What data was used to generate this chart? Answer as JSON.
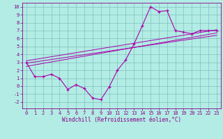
{
  "title": "",
  "xlabel": "Windchill (Refroidissement éolien,°C)",
  "bg_color": "#b2ece4",
  "line_color": "#aa00aa",
  "grid_color": "#80c0c0",
  "xlim": [
    -0.5,
    23.5
  ],
  "ylim": [
    -2.8,
    10.5
  ],
  "xticks": [
    0,
    1,
    2,
    3,
    4,
    5,
    6,
    7,
    8,
    9,
    10,
    11,
    12,
    13,
    14,
    15,
    16,
    17,
    18,
    19,
    20,
    21,
    22,
    23
  ],
  "yticks": [
    -2,
    -1,
    0,
    1,
    2,
    3,
    4,
    5,
    6,
    7,
    8,
    9,
    10
  ],
  "curve1_x": [
    0,
    1,
    2,
    3,
    4,
    5,
    6,
    7,
    8,
    9,
    10,
    11,
    12,
    13,
    14,
    15,
    16,
    17,
    18,
    19,
    20,
    21,
    22,
    23
  ],
  "curve1_y": [
    3.0,
    1.2,
    1.2,
    1.5,
    1.0,
    -0.4,
    0.2,
    -0.3,
    -1.5,
    -1.7,
    -0.1,
    2.0,
    3.3,
    5.3,
    7.6,
    10.0,
    9.4,
    9.5,
    7.0,
    6.8,
    6.6,
    7.0,
    7.0,
    7.0
  ],
  "line1_x": [
    0,
    23
  ],
  "line1_y": [
    2.5,
    6.7
  ],
  "line2_x": [
    0,
    23
  ],
  "line2_y": [
    3.2,
    7.1
  ],
  "line3_x": [
    0,
    23
  ],
  "line3_y": [
    2.9,
    6.4
  ],
  "tick_color": "#880088",
  "tick_fontsize": 5.0,
  "xlabel_fontsize": 5.5
}
